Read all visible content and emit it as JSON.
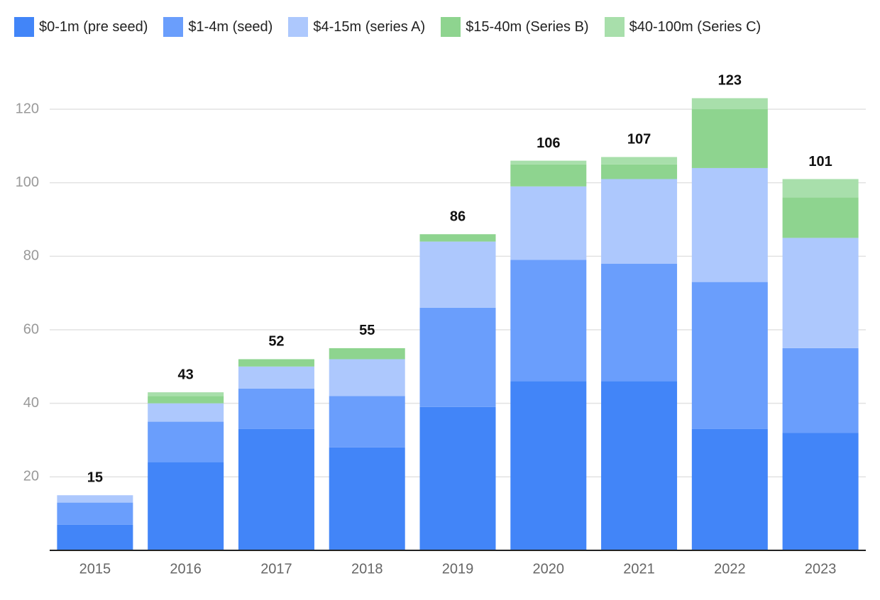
{
  "chart_data": {
    "type": "stacked-bar",
    "categories": [
      "2015",
      "2016",
      "2017",
      "2018",
      "2019",
      "2020",
      "2021",
      "2022",
      "2023"
    ],
    "series": [
      {
        "name": "$0-1m (pre seed)",
        "color": "#4285f8",
        "values": [
          7,
          24,
          33,
          28,
          39,
          46,
          46,
          33,
          32
        ]
      },
      {
        "name": "$1-4m (seed)",
        "color": "#6a9efc",
        "values": [
          6,
          11,
          11,
          14,
          27,
          33,
          32,
          40,
          23
        ]
      },
      {
        "name": "$4-15m (series A)",
        "color": "#adc8fd",
        "values": [
          2,
          5,
          6,
          10,
          18,
          20,
          23,
          31,
          30
        ]
      },
      {
        "name": "$15-40m (Series B)",
        "color": "#8ed48f",
        "values": [
          0,
          2,
          2,
          3,
          2,
          6,
          4,
          16,
          11
        ]
      },
      {
        "name": "$40-100m (Series C)",
        "color": "#a8dfab",
        "values": [
          0,
          1,
          0,
          0,
          0,
          1,
          2,
          3,
          5
        ]
      }
    ],
    "totals": [
      15,
      43,
      52,
      55,
      86,
      106,
      107,
      123,
      101
    ],
    "ylim": [
      0,
      120
    ],
    "yticks": [
      20,
      40,
      60,
      80,
      100,
      120
    ],
    "grid": true,
    "legend": "top-left"
  }
}
